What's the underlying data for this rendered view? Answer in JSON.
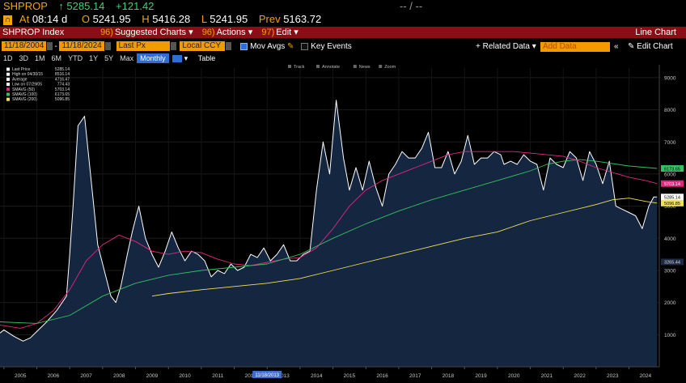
{
  "ticker": {
    "symbol": "SHPROP",
    "last": "5285.14",
    "change": "+121.42",
    "dash": "-- / --"
  },
  "quote": {
    "at_label": "At",
    "time": "08:14 d",
    "open_label": "O",
    "open": "5241.95",
    "high_label": "H",
    "high": "5416.28",
    "low_label": "L",
    "low": "5241.95",
    "prev_label": "Prev",
    "prev": "5163.72"
  },
  "menu": {
    "index": "SHPROP Index",
    "suggested_num": "96)",
    "suggested": "Suggested Charts",
    "actions_num": "96)",
    "actions": "Actions",
    "edit_num": "97)",
    "edit": "Edit",
    "chart_type": "Line Chart"
  },
  "controls": {
    "date_from": "11/18/2004",
    "date_to": "11/18/2024",
    "field": "Last Px",
    "currency": "Local CCY",
    "mov_avgs": "Mov Avgs",
    "key_events": "Key Events",
    "related": "+ Related Data",
    "add_data": "Add Data",
    "edit_chart": "Edit Chart"
  },
  "periods": [
    "1D",
    "3D",
    "1M",
    "6M",
    "YTD",
    "1Y",
    "5Y",
    "Max",
    "Monthly"
  ],
  "period_active": "Monthly",
  "table_label": "Table",
  "tools": [
    "Track",
    "Annotate",
    "News",
    "Zoom"
  ],
  "legend": [
    {
      "label": "Last Price",
      "value": "5285.14",
      "color": "#ffffff"
    },
    {
      "label": "High on 04/30/15",
      "value": "8516.14",
      "color": "#ffffff"
    },
    {
      "label": "Average",
      "value": "4716.47",
      "color": "#ffffff"
    },
    {
      "label": "Low on 07/29/05",
      "value": "774.43",
      "color": "#ffffff"
    },
    {
      "label": "SMAVG (50)",
      "value": "5703.14",
      "color": "#e0287f"
    },
    {
      "label": "SMAVG (100)",
      "value": "6173.65",
      "color": "#35c061"
    },
    {
      "label": "SMAVG (200)",
      "value": "5096.85",
      "color": "#f2e25a"
    }
  ],
  "right_tags": [
    {
      "value": "6173.65",
      "color": "#35c061",
      "text_color": "#000"
    },
    {
      "value": "5703.14",
      "color": "#e0287f",
      "text_color": "#fff"
    },
    {
      "value": "5285.14",
      "color": "#ffffff",
      "text_color": "#000"
    },
    {
      "value": "5096.85",
      "color": "#f2e25a",
      "text_color": "#000"
    },
    {
      "value": "3265.44",
      "color": "#1d2a46",
      "text_color": "#ddd"
    }
  ],
  "x_labels": [
    "2005",
    "2006",
    "2007",
    "2008",
    "2009",
    "2010",
    "2011",
    "2012",
    "2013",
    "2014",
    "2015",
    "2016",
    "2017",
    "2018",
    "2019",
    "2020",
    "2021",
    "2022",
    "2023",
    "2024"
  ],
  "highlight_label": "11/18/2013",
  "chart_data": {
    "type": "line",
    "y_ticks": [
      1000,
      2000,
      3000,
      4000,
      5000,
      6000,
      7000,
      8000,
      9000
    ],
    "ylim": [
      0,
      9300
    ],
    "xlim": [
      2004.88,
      2024.92
    ],
    "grid": true,
    "legend_position": "top-left",
    "series": [
      {
        "name": "Last Price",
        "color": "#ffffff",
        "fill": "#142640",
        "x": [
          2004.88,
          2005.0,
          2005.3,
          2005.58,
          2005.8,
          2006.0,
          2006.3,
          2006.6,
          2006.9,
          2007.0,
          2007.1,
          2007.25,
          2007.45,
          2007.65,
          2007.85,
          2008.05,
          2008.25,
          2008.4,
          2008.55,
          2008.75,
          2008.9,
          2009.1,
          2009.3,
          2009.5,
          2009.7,
          2009.9,
          2010.1,
          2010.3,
          2010.5,
          2010.7,
          2010.9,
          2011.1,
          2011.3,
          2011.5,
          2011.7,
          2011.9,
          2012.1,
          2012.3,
          2012.5,
          2012.7,
          2012.9,
          2013.1,
          2013.3,
          2013.5,
          2013.7,
          2013.9,
          2014.1,
          2014.3,
          2014.5,
          2014.7,
          2014.9,
          2015.1,
          2015.32,
          2015.5,
          2015.7,
          2015.9,
          2016.1,
          2016.3,
          2016.5,
          2016.7,
          2016.9,
          2017.1,
          2017.3,
          2017.5,
          2017.7,
          2017.9,
          2018.1,
          2018.3,
          2018.5,
          2018.7,
          2018.9,
          2019.1,
          2019.3,
          2019.5,
          2019.7,
          2019.9,
          2020.1,
          2020.2,
          2020.4,
          2020.6,
          2020.8,
          2021.0,
          2021.2,
          2021.4,
          2021.6,
          2021.8,
          2022.0,
          2022.2,
          2022.4,
          2022.6,
          2022.8,
          2023.0,
          2023.2,
          2023.4,
          2023.6,
          2023.8,
          2024.0,
          2024.2,
          2024.4,
          2024.6,
          2024.75,
          2024.85
        ],
        "values": [
          1050,
          1150,
          950,
          800,
          900,
          1100,
          1400,
          1750,
          2200,
          3500,
          5000,
          7500,
          7800,
          5800,
          3800,
          3000,
          2200,
          2000,
          2500,
          3500,
          4200,
          5000,
          4000,
          3500,
          3100,
          3600,
          4200,
          3700,
          3300,
          3600,
          3500,
          3300,
          2800,
          3000,
          2900,
          3200,
          3000,
          3100,
          3500,
          3400,
          3700,
          3300,
          3500,
          3800,
          3300,
          3300,
          3500,
          3600,
          5500,
          7000,
          6000,
          8300,
          6500,
          5500,
          6200,
          5500,
          6400,
          5600,
          5000,
          6000,
          6300,
          6700,
          6500,
          6500,
          6800,
          7300,
          6200,
          6200,
          6700,
          6000,
          6400,
          7200,
          6300,
          6500,
          6500,
          6700,
          6600,
          6300,
          6400,
          6300,
          6600,
          6400,
          6300,
          5500,
          6500,
          6300,
          6200,
          6700,
          6500,
          5800,
          6700,
          6300,
          5700,
          6400,
          5000,
          4900,
          4800,
          4700,
          4300,
          5000,
          5285,
          5285
        ]
      },
      {
        "name": "SMAVG (50)",
        "color": "#e0287f",
        "x": [
          2004.88,
          2005.5,
          2006.0,
          2006.5,
          2007.0,
          2007.5,
          2008.0,
          2008.5,
          2009.0,
          2009.5,
          2010.0,
          2010.5,
          2011.0,
          2011.5,
          2012.0,
          2012.5,
          2013.0,
          2013.5,
          2014.0,
          2014.5,
          2015.0,
          2015.5,
          2016.0,
          2016.5,
          2017.0,
          2017.5,
          2018.0,
          2018.5,
          2019.0,
          2019.5,
          2020.0,
          2020.5,
          2021.0,
          2021.5,
          2022.0,
          2022.5,
          2023.0,
          2023.5,
          2024.0,
          2024.5,
          2024.85
        ],
        "values": [
          1300,
          1200,
          1350,
          1750,
          2400,
          3300,
          3800,
          4100,
          3900,
          3600,
          3500,
          3600,
          3550,
          3350,
          3200,
          3150,
          3250,
          3350,
          3400,
          3700,
          4300,
          5000,
          5500,
          5800,
          6000,
          6200,
          6400,
          6600,
          6700,
          6700,
          6700,
          6700,
          6650,
          6600,
          6550,
          6400,
          6200,
          6050,
          5900,
          5800,
          5703
        ]
      },
      {
        "name": "SMAVG (100)",
        "color": "#35c061",
        "x": [
          2004.88,
          2006.0,
          2007.0,
          2008.0,
          2009.0,
          2010.0,
          2011.0,
          2012.0,
          2013.0,
          2014.0,
          2015.0,
          2016.0,
          2017.0,
          2018.0,
          2019.0,
          2020.0,
          2021.0,
          2021.5,
          2022.0,
          2022.5,
          2023.0,
          2024.0,
          2024.85
        ],
        "values": [
          1400,
          1350,
          1600,
          2200,
          2600,
          2850,
          3000,
          3100,
          3200,
          3500,
          4000,
          4450,
          4850,
          5200,
          5500,
          5800,
          6100,
          6300,
          6400,
          6450,
          6400,
          6250,
          6174
        ]
      },
      {
        "name": "SMAVG (200)",
        "color": "#f2e25a",
        "x": [
          2009.5,
          2010.0,
          2011.0,
          2012.0,
          2013.0,
          2014.0,
          2015.0,
          2016.0,
          2017.0,
          2018.0,
          2019.0,
          2020.0,
          2021.0,
          2022.0,
          2023.0,
          2023.5,
          2024.0,
          2024.5,
          2024.85
        ],
        "values": [
          2200,
          2280,
          2400,
          2500,
          2600,
          2750,
          3000,
          3250,
          3500,
          3750,
          4000,
          4200,
          4550,
          4800,
          5050,
          5200,
          5250,
          5150,
          5097
        ]
      }
    ]
  }
}
